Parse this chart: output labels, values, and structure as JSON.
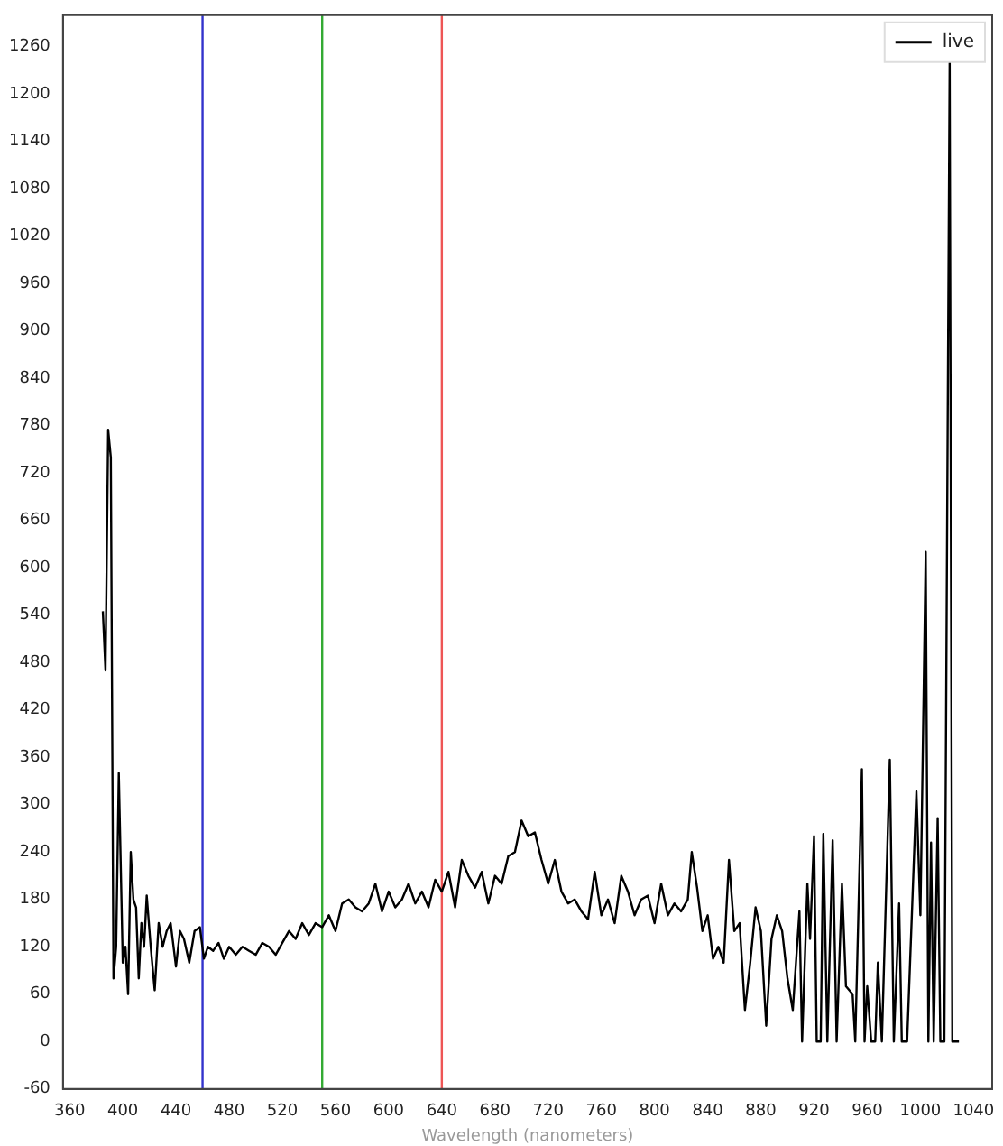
{
  "chart_data": {
    "type": "line",
    "xlabel": "Wavelength (nanometers)",
    "xlim": [
      355,
      1054
    ],
    "ylim": [
      -60,
      1300
    ],
    "xticks": [
      360,
      400,
      440,
      480,
      520,
      560,
      600,
      640,
      680,
      720,
      760,
      800,
      840,
      880,
      920,
      960,
      1000,
      1040
    ],
    "yticks": [
      -60,
      0,
      60,
      120,
      180,
      240,
      300,
      360,
      420,
      480,
      540,
      600,
      660,
      720,
      780,
      840,
      900,
      960,
      1020,
      1080,
      1140,
      1200,
      1260
    ],
    "grid": false,
    "legend": "top right",
    "marker": "none",
    "line_style": "solid",
    "ref_lines": [
      {
        "axis": "x",
        "value": 460,
        "color": "#3333cc"
      },
      {
        "axis": "x",
        "value": 550,
        "color": "#33aa33"
      },
      {
        "axis": "x",
        "value": 640,
        "color": "#ee5555"
      }
    ],
    "series": [
      {
        "name": "live",
        "color": "#000000",
        "x": [
          385,
          387,
          389,
          391,
          393,
          395,
          397,
          400,
          402,
          404,
          406,
          408,
          410,
          412,
          414,
          416,
          418,
          421,
          424,
          427,
          430,
          433,
          436,
          440,
          443,
          446,
          450,
          454,
          458,
          461,
          464,
          468,
          472,
          476,
          480,
          485,
          490,
          495,
          500,
          505,
          510,
          515,
          520,
          525,
          530,
          535,
          540,
          545,
          550,
          555,
          560,
          565,
          570,
          575,
          580,
          585,
          590,
          595,
          600,
          605,
          610,
          615,
          620,
          625,
          630,
          635,
          640,
          645,
          650,
          655,
          660,
          665,
          670,
          675,
          680,
          685,
          690,
          695,
          700,
          705,
          710,
          715,
          720,
          725,
          730,
          735,
          740,
          745,
          750,
          755,
          760,
          765,
          770,
          775,
          780,
          785,
          790,
          795,
          800,
          805,
          810,
          815,
          820,
          825,
          828,
          832,
          836,
          840,
          844,
          848,
          852,
          856,
          860,
          864,
          868,
          872,
          876,
          880,
          884,
          888,
          892,
          896,
          900,
          904,
          909,
          911,
          915,
          917,
          920,
          922,
          925,
          927,
          930,
          934,
          937,
          941,
          944,
          949,
          951,
          956,
          958,
          960,
          963,
          966,
          968,
          971,
          977,
          980,
          984,
          986,
          990,
          994,
          997,
          1000,
          1004,
          1006,
          1008,
          1010,
          1013,
          1015,
          1018,
          1022,
          1024,
          1029
        ],
        "values": [
          545,
          470,
          775,
          740,
          80,
          120,
          340,
          100,
          120,
          60,
          240,
          180,
          170,
          80,
          150,
          120,
          185,
          120,
          65,
          150,
          120,
          140,
          150,
          95,
          140,
          130,
          100,
          140,
          145,
          105,
          120,
          115,
          125,
          105,
          120,
          110,
          120,
          115,
          110,
          125,
          120,
          110,
          125,
          140,
          130,
          150,
          135,
          150,
          145,
          160,
          140,
          175,
          180,
          170,
          165,
          175,
          200,
          165,
          190,
          170,
          180,
          200,
          175,
          190,
          170,
          205,
          190,
          215,
          170,
          230,
          210,
          195,
          215,
          175,
          210,
          200,
          235,
          240,
          280,
          260,
          265,
          230,
          200,
          230,
          190,
          175,
          180,
          165,
          155,
          215,
          160,
          180,
          150,
          210,
          190,
          160,
          180,
          185,
          150,
          200,
          160,
          175,
          165,
          180,
          240,
          195,
          140,
          160,
          105,
          120,
          100,
          230,
          140,
          150,
          40,
          100,
          170,
          140,
          20,
          130,
          160,
          140,
          80,
          40,
          165,
          0,
          200,
          130,
          260,
          0,
          0,
          263,
          0,
          255,
          0,
          200,
          70,
          60,
          0,
          345,
          0,
          70,
          0,
          0,
          100,
          0,
          357,
          0,
          175,
          0,
          0,
          180,
          317,
          160,
          620,
          0,
          252,
          0,
          283,
          0,
          0,
          1240,
          0,
          0
        ]
      }
    ]
  }
}
